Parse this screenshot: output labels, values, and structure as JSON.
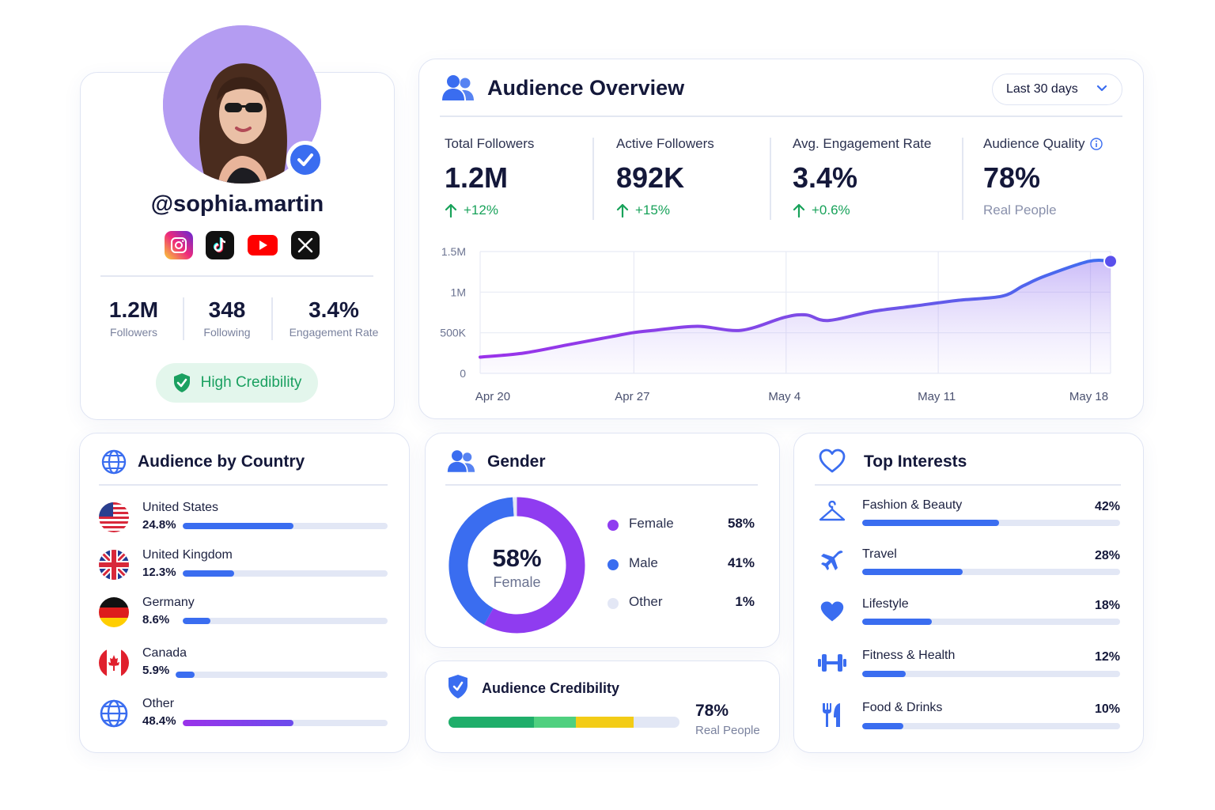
{
  "profile": {
    "handle": "@sophia.martin",
    "socials": [
      "instagram-icon",
      "tiktok-icon",
      "youtube-icon",
      "x-icon"
    ],
    "stats": [
      {
        "value": "1.2M",
        "label": "Followers"
      },
      {
        "value": "348",
        "label": "Following"
      },
      {
        "value": "3.4%",
        "label": "Engagement Rate"
      }
    ],
    "credibility_label": "High Credibility"
  },
  "overview": {
    "title": "Audience Overview",
    "range": "Last 30 days",
    "kpis": [
      {
        "label": "Total Followers",
        "value": "1.2M",
        "change": "+12%"
      },
      {
        "label": "Active Followers",
        "value": "892K",
        "change": "+15%"
      },
      {
        "label": "Avg. Engagement Rate",
        "value": "3.4%",
        "change": "+0.6%"
      },
      {
        "label": "Audience Quality",
        "value": "78%",
        "sub": "Real People"
      }
    ]
  },
  "chart_data": {
    "type": "area",
    "x_ticks": [
      "Apr 20",
      "Apr 27",
      "May 4",
      "May 11",
      "May 18"
    ],
    "y_ticks": [
      "0",
      "500K",
      "1M",
      "1.5M"
    ],
    "ylim": [
      0,
      1500000
    ],
    "grid": true,
    "x": [
      0,
      2,
      4,
      6,
      7,
      8,
      10,
      12,
      14,
      15,
      16,
      18,
      20,
      22,
      24,
      25,
      26,
      28,
      29
    ],
    "values": [
      200000,
      250000,
      350000,
      450000,
      500000,
      530000,
      580000,
      530000,
      690000,
      720000,
      650000,
      760000,
      830000,
      900000,
      950000,
      1080000,
      1200000,
      1380000,
      1380000
    ]
  },
  "country": {
    "title": "Audience by Country",
    "items": [
      {
        "name": "United States",
        "pct": "24.8%",
        "value": 0.54
      },
      {
        "name": "United Kingdom",
        "pct": "12.3%",
        "value": 0.25
      },
      {
        "name": "Germany",
        "pct": "8.6%",
        "value": 0.135
      },
      {
        "name": "Canada",
        "pct": "5.9%",
        "value": 0.09
      },
      {
        "name": "Other",
        "pct": "48.4%",
        "value": 0.54
      }
    ]
  },
  "gender": {
    "title": "Gender",
    "center_value": "58%",
    "center_label": "Female",
    "items": [
      {
        "name": "Female",
        "pct": "58%",
        "color": "#8f3cf0",
        "value": 58
      },
      {
        "name": "Male",
        "pct": "41%",
        "color": "#3a6df0",
        "value": 41
      },
      {
        "name": "Other",
        "pct": "1%",
        "color": "#e3e7f5",
        "value": 1
      }
    ]
  },
  "credibility": {
    "title": "Audience Credibility",
    "value": "78%",
    "sub": "Real People",
    "segments": [
      {
        "color": "#1fae6a",
        "value": 0.37
      },
      {
        "color": "#4fd07f",
        "value": 0.18
      },
      {
        "color": "#f3cc16",
        "value": 0.25
      }
    ]
  },
  "interests": {
    "title": "Top Interests",
    "items": [
      {
        "name": "Fashion & Beauty",
        "pct": "42%",
        "icon": "hanger-icon",
        "value": 0.53
      },
      {
        "name": "Travel",
        "pct": "28%",
        "icon": "airplane-icon",
        "value": 0.39
      },
      {
        "name": "Lifestyle",
        "pct": "18%",
        "icon": "heart-icon",
        "value": 0.27
      },
      {
        "name": "Fitness & Health",
        "pct": "12%",
        "icon": "dumbbell-icon",
        "value": 0.17
      },
      {
        "name": "Food & Drinks",
        "pct": "10%",
        "icon": "fork-knife-icon",
        "value": 0.16
      }
    ]
  },
  "colors": {
    "accent": "#3a6df0",
    "purple": "#8f3cf0",
    "positive": "#18a25a"
  }
}
